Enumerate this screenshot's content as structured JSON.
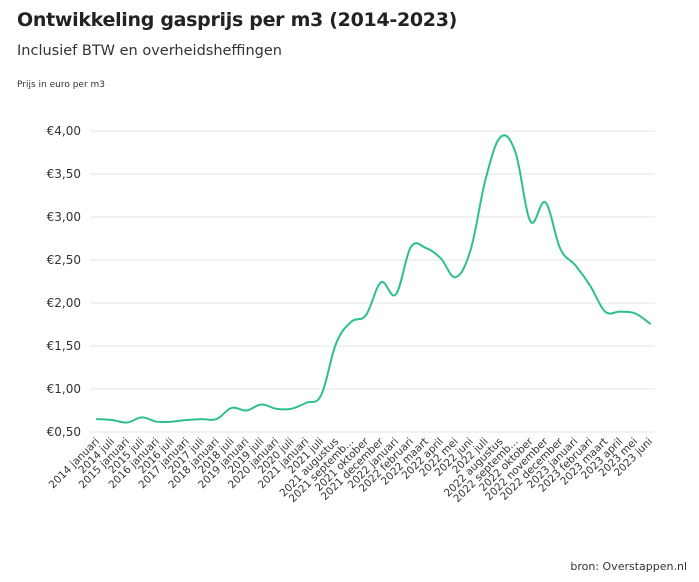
{
  "chart_data": {
    "type": "line",
    "title": "Ontwikkeling gasprijs per m3 (2014-2023)",
    "subtitle": "Inclusief BTW en overheidsheffingen",
    "ylabel": "Prijs in euro per m3",
    "source": "bron: Overstappen.nl",
    "ylim": [
      0.5,
      4.0
    ],
    "yticks": [
      "€0,50",
      "€1,00",
      "€1,50",
      "€2,00",
      "€2,50",
      "€3,00",
      "€3,50",
      "€4,00"
    ],
    "color": "#2ebf8f",
    "grid": true,
    "categories": [
      "2014 januari",
      "2014 juli",
      "2015 januari",
      "2015 juli",
      "2016 januari",
      "2016 juli",
      "2017 januari",
      "2017 juli",
      "2018 januari",
      "2018 juli",
      "2019 januari",
      "2019 juli",
      "2020 januari",
      "2020 juli",
      "2021 januari",
      "2021 juli",
      "2021 augustus",
      "2021 septemb...",
      "2021 oktober",
      "2021 december",
      "2022 januari",
      "2022 februari",
      "2022 maart",
      "2022 april",
      "2022 mei",
      "2022 juni",
      "2022 juli",
      "2022 augustus",
      "2022 septemb...",
      "2022 oktober",
      "2022 november",
      "2022 december",
      "2023 januari",
      "2023 februari",
      "2023 maart",
      "2023 april",
      "2023 mei",
      "2023 juni"
    ],
    "series": [
      {
        "values": [
          0.65,
          0.64,
          0.61,
          0.67,
          0.62,
          0.62,
          0.64,
          0.65,
          0.65,
          0.78,
          0.75,
          0.82,
          0.77,
          0.77,
          0.84,
          0.93,
          1.53,
          1.78,
          1.86,
          2.24,
          2.1,
          2.65,
          2.64,
          2.52,
          2.3,
          2.62,
          3.44,
          3.93,
          3.75,
          2.95,
          3.17,
          2.63,
          2.44,
          2.2,
          1.9,
          1.9,
          1.88,
          1.76
        ]
      }
    ]
  }
}
